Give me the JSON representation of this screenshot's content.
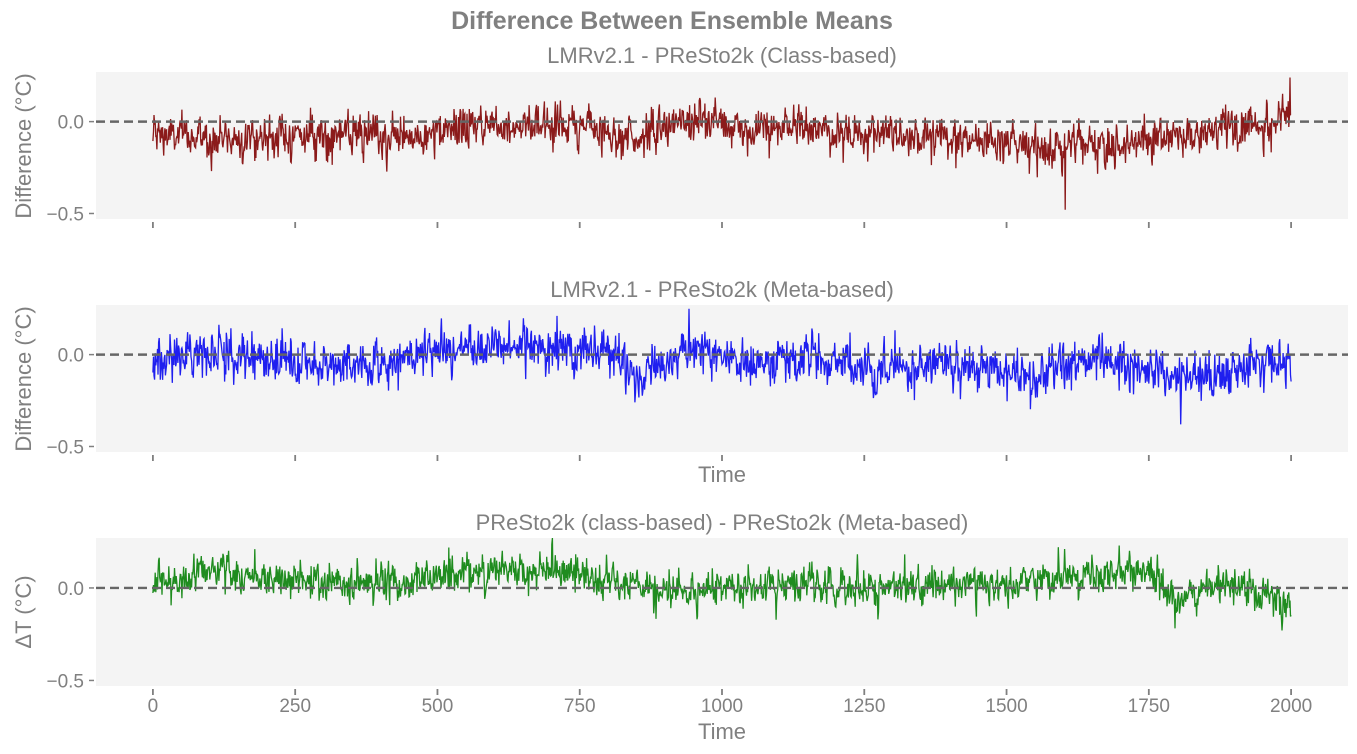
{
  "figure_title": "Difference Between Ensemble Means",
  "chart_data": [
    {
      "type": "line",
      "title": "LMRv2.1 - PReSto2k (Class-based)",
      "ylabel": "Difference (°C)",
      "xlabel": "",
      "series_name": "LMRv2.1 - PReSto2k (Class-based)",
      "color": "#8b1a1a",
      "xlim": [
        -100,
        2100
      ],
      "ylim": [
        -0.53,
        0.27
      ],
      "yticks": [
        0.0,
        -0.5
      ],
      "ytick_labels": [
        "0.0",
        "−0.5"
      ],
      "xticks": [
        0,
        250,
        500,
        750,
        1000,
        1250,
        1500,
        1750,
        2000
      ],
      "xtick_labels_visible": false,
      "reference_line": 0.0,
      "x_range": [
        0,
        2000
      ],
      "trend_knots": {
        "x": [
          0,
          100,
          200,
          300,
          400,
          500,
          550,
          650,
          750,
          850,
          950,
          1050,
          1150,
          1250,
          1350,
          1450,
          1550,
          1650,
          1750,
          1850,
          1950,
          2000
        ],
        "y": [
          -0.07,
          -0.09,
          -0.08,
          -0.07,
          -0.09,
          -0.08,
          -0.02,
          -0.01,
          -0.02,
          -0.09,
          0.02,
          -0.05,
          -0.03,
          -0.08,
          -0.06,
          -0.09,
          -0.12,
          -0.15,
          -0.08,
          -0.06,
          -0.01,
          0.03
        ]
      },
      "noise_std": 0.055,
      "extremes": {
        "max": 0.24,
        "min": -0.48,
        "max_at": 1998,
        "min_at": 1603
      }
    },
    {
      "type": "line",
      "title": "LMRv2.1 - PReSto2k (Meta-based)",
      "ylabel": "Difference (°C)",
      "xlabel": "Time",
      "series_name": "LMRv2.1 - PReSto2k (Meta-based)",
      "color": "#1f1fef",
      "xlim": [
        -100,
        2100
      ],
      "ylim": [
        -0.53,
        0.27
      ],
      "yticks": [
        0.0,
        -0.5
      ],
      "ytick_labels": [
        "0.0",
        "−0.5"
      ],
      "xticks": [
        0,
        250,
        500,
        750,
        1000,
        1250,
        1500,
        1750,
        2000
      ],
      "xtick_labels_visible": false,
      "reference_line": 0.0,
      "x_range": [
        0,
        2000
      ],
      "trend_knots": {
        "x": [
          0,
          100,
          200,
          300,
          400,
          500,
          600,
          700,
          800,
          850,
          900,
          950,
          1050,
          1150,
          1250,
          1350,
          1450,
          1550,
          1650,
          1750,
          1850,
          1950,
          2000
        ],
        "y": [
          -0.04,
          0.03,
          -0.03,
          -0.06,
          -0.05,
          0.02,
          0.05,
          0.04,
          0.02,
          -0.12,
          -0.04,
          0.04,
          -0.05,
          -0.02,
          -0.09,
          -0.04,
          -0.08,
          -0.11,
          -0.03,
          -0.08,
          -0.14,
          -0.05,
          -0.02
        ]
      },
      "noise_std": 0.06,
      "extremes": {
        "max": 0.25,
        "min": -0.38,
        "max_at": 942,
        "min_at": 1806
      }
    },
    {
      "type": "line",
      "title": "PReSto2k (class-based) - PReSto2k (Meta-based)",
      "ylabel": "ΔT (°C)",
      "xlabel": "Time",
      "series_name": "PReSto2k (class-based) - PReSto2k (Meta-based)",
      "color": "#1f8c1f",
      "xlim": [
        -100,
        2100
      ],
      "ylim": [
        -0.53,
        0.27
      ],
      "yticks": [
        0.0,
        -0.5
      ],
      "ytick_labels": [
        "0.0",
        "−0.5"
      ],
      "xticks": [
        0,
        250,
        500,
        750,
        1000,
        1250,
        1500,
        1750,
        2000
      ],
      "xtick_labels": [
        "0",
        "250",
        "500",
        "750",
        "1000",
        "1250",
        "1500",
        "1750",
        "2000"
      ],
      "xtick_labels_visible": true,
      "reference_line": 0.0,
      "x_range": [
        0,
        2000
      ],
      "trend_knots": {
        "x": [
          0,
          100,
          200,
          300,
          400,
          500,
          550,
          650,
          750,
          850,
          900,
          1000,
          1100,
          1200,
          1300,
          1400,
          1500,
          1600,
          1700,
          1750,
          1800,
          1900,
          1980,
          2000
        ],
        "y": [
          0.0,
          0.11,
          0.05,
          0.03,
          0.02,
          0.06,
          0.1,
          0.09,
          0.07,
          0.0,
          -0.04,
          0.02,
          0.0,
          0.02,
          0.01,
          0.03,
          0.0,
          0.05,
          0.08,
          0.09,
          -0.05,
          0.02,
          -0.07,
          -0.06
        ]
      },
      "noise_std": 0.05,
      "extremes": {
        "max": 0.27,
        "min": -0.23,
        "max_at": 702,
        "min_at": 1984
      }
    }
  ]
}
